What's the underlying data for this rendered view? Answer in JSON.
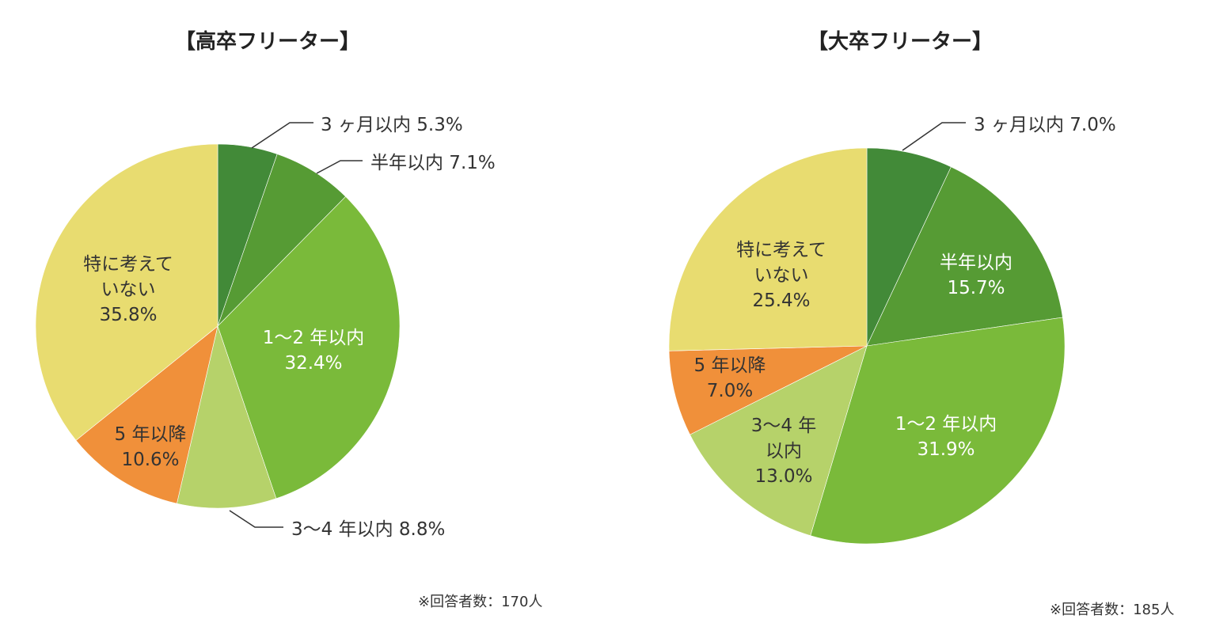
{
  "chart_data": [
    {
      "type": "pie",
      "title": "【高卒フリーター】",
      "start": "top",
      "direction": "clockwise",
      "slices": [
        {
          "label": "3ヶ月以内",
          "value": 5.3,
          "color": "#428a38",
          "text": "3 ヶ月以内 5.3%"
        },
        {
          "label": "半年以内",
          "value": 7.1,
          "color": "#569b34",
          "text": "半年以内 7.1%"
        },
        {
          "label": "1〜2年以内",
          "value": 32.4,
          "color": "#7aba3a",
          "lines": [
            "1〜2 年以内",
            "32.4%"
          ]
        },
        {
          "label": "3〜4年以内",
          "value": 8.8,
          "color": "#b6d26a",
          "text": "3〜4 年以内 8.8%"
        },
        {
          "label": "5年以降",
          "value": 10.6,
          "color": "#f0903a",
          "lines": [
            "5 年以降",
            "10.6%"
          ]
        },
        {
          "label": "特に考えていない",
          "value": 35.8,
          "color": "#e8dc70",
          "lines": [
            "特に考えて",
            "いない",
            "35.8%"
          ]
        }
      ],
      "note": "※回答者数：170人"
    },
    {
      "type": "pie",
      "title": "【大卒フリーター】",
      "start": "top",
      "direction": "clockwise",
      "slices": [
        {
          "label": "3ヶ月以内",
          "value": 7.0,
          "color": "#428a38",
          "text": "3 ヶ月以内 7.0%"
        },
        {
          "label": "半年以内",
          "value": 15.7,
          "color": "#569b34",
          "lines": [
            "半年以内",
            "15.7%"
          ]
        },
        {
          "label": "1〜2年以内",
          "value": 31.9,
          "color": "#7aba3a",
          "lines": [
            "1〜2 年以内",
            "31.9%"
          ]
        },
        {
          "label": "3〜4年以内",
          "value": 13.0,
          "color": "#b6d26a",
          "lines": [
            "3〜4 年",
            "以内",
            "13.0%"
          ]
        },
        {
          "label": "5年以降",
          "value": 7.0,
          "color": "#f0903a",
          "lines": [
            "5 年以降",
            "7.0%"
          ]
        },
        {
          "label": "特に考えていない",
          "value": 25.4,
          "color": "#e8dc70",
          "lines": [
            "特に考えて",
            "いない",
            "25.4%"
          ]
        }
      ],
      "note": "※回答者数：185人"
    }
  ]
}
